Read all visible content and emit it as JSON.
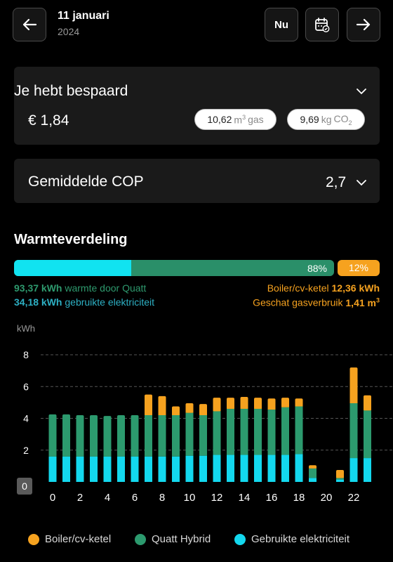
{
  "header": {
    "date": "11 januari",
    "year": "2024",
    "now_label": "Nu",
    "icons": {
      "back": "arrow-left-icon",
      "calendar": "calendar-check-icon",
      "forward": "arrow-right-icon"
    }
  },
  "savings": {
    "title": "Je hebt bespaard",
    "amount": "€ 1,84",
    "gas_value": "10,62",
    "gas_unit": "m",
    "gas_unit_sup": "3",
    "gas_label": "gas",
    "co2_value": "9,69",
    "co2_unit": "kg",
    "co2_label": "CO",
    "co2_sub": "2"
  },
  "cop": {
    "title": "Gemiddelde COP",
    "value": "2,7"
  },
  "distribution": {
    "title": "Warmteverdeling",
    "quatt_percent": "88%",
    "boiler_percent": "12%",
    "quatt_fraction": 0.88,
    "electric_fraction_of_quatt": 0.366,
    "heat_value": "93,37 kWh",
    "heat_label": "warmte door Quatt",
    "elec_value": "34,18 kWh",
    "elec_label": "gebruikte elektriciteit",
    "boiler_label": "Boiler/cv-ketel",
    "boiler_value": "12,36 kWh",
    "gas_label": "Geschat gasverbruik",
    "gas_value": "1,41 m",
    "gas_sup": "3"
  },
  "colors": {
    "electric": "#11e3f0",
    "quatt": "#2a8f69",
    "boiler": "#f6a21f",
    "bar_electric": "#13d8ee",
    "bar_quatt": "#2c9a6e"
  },
  "chart_data": {
    "type": "bar",
    "ylabel": "kWh",
    "ylim": [
      0,
      8
    ],
    "yticks": [
      "0",
      "2",
      "4",
      "6",
      "8"
    ],
    "xticks": [
      "0",
      "2",
      "4",
      "6",
      "8",
      "10",
      "12",
      "14",
      "16",
      "18",
      "20",
      "22"
    ],
    "categories": [
      0,
      1,
      2,
      3,
      4,
      5,
      6,
      7,
      8,
      9,
      10,
      11,
      12,
      13,
      14,
      15,
      16,
      17,
      18,
      19,
      20,
      21,
      22,
      23
    ],
    "series": [
      {
        "name": "Gebruikte elektriciteit",
        "values": [
          1.6,
          1.6,
          1.6,
          1.6,
          1.6,
          1.6,
          1.6,
          1.6,
          1.6,
          1.6,
          1.65,
          1.65,
          1.7,
          1.7,
          1.7,
          1.7,
          1.7,
          1.7,
          1.75,
          0.25,
          0,
          0.15,
          1.5,
          1.5
        ]
      },
      {
        "name": "Quatt Hybrid",
        "values": [
          2.65,
          2.65,
          2.6,
          2.6,
          2.55,
          2.6,
          2.6,
          2.6,
          2.6,
          2.6,
          2.7,
          2.55,
          2.75,
          2.9,
          2.9,
          2.9,
          2.85,
          3.0,
          3.0,
          0.6,
          0,
          0.1,
          3.45,
          3.0
        ]
      },
      {
        "name": "Boiler/cv-ketel",
        "values": [
          0,
          0,
          0,
          0,
          0,
          0,
          0,
          1.3,
          1.2,
          0.55,
          0.6,
          0.7,
          0.85,
          0.7,
          0.75,
          0.7,
          0.7,
          0.6,
          0.5,
          0.2,
          0,
          0.5,
          2.25,
          0.95
        ]
      }
    ],
    "legend": [
      "Boiler/cv-ketel",
      "Quatt Hybrid",
      "Gebruikte elektriciteit"
    ]
  }
}
